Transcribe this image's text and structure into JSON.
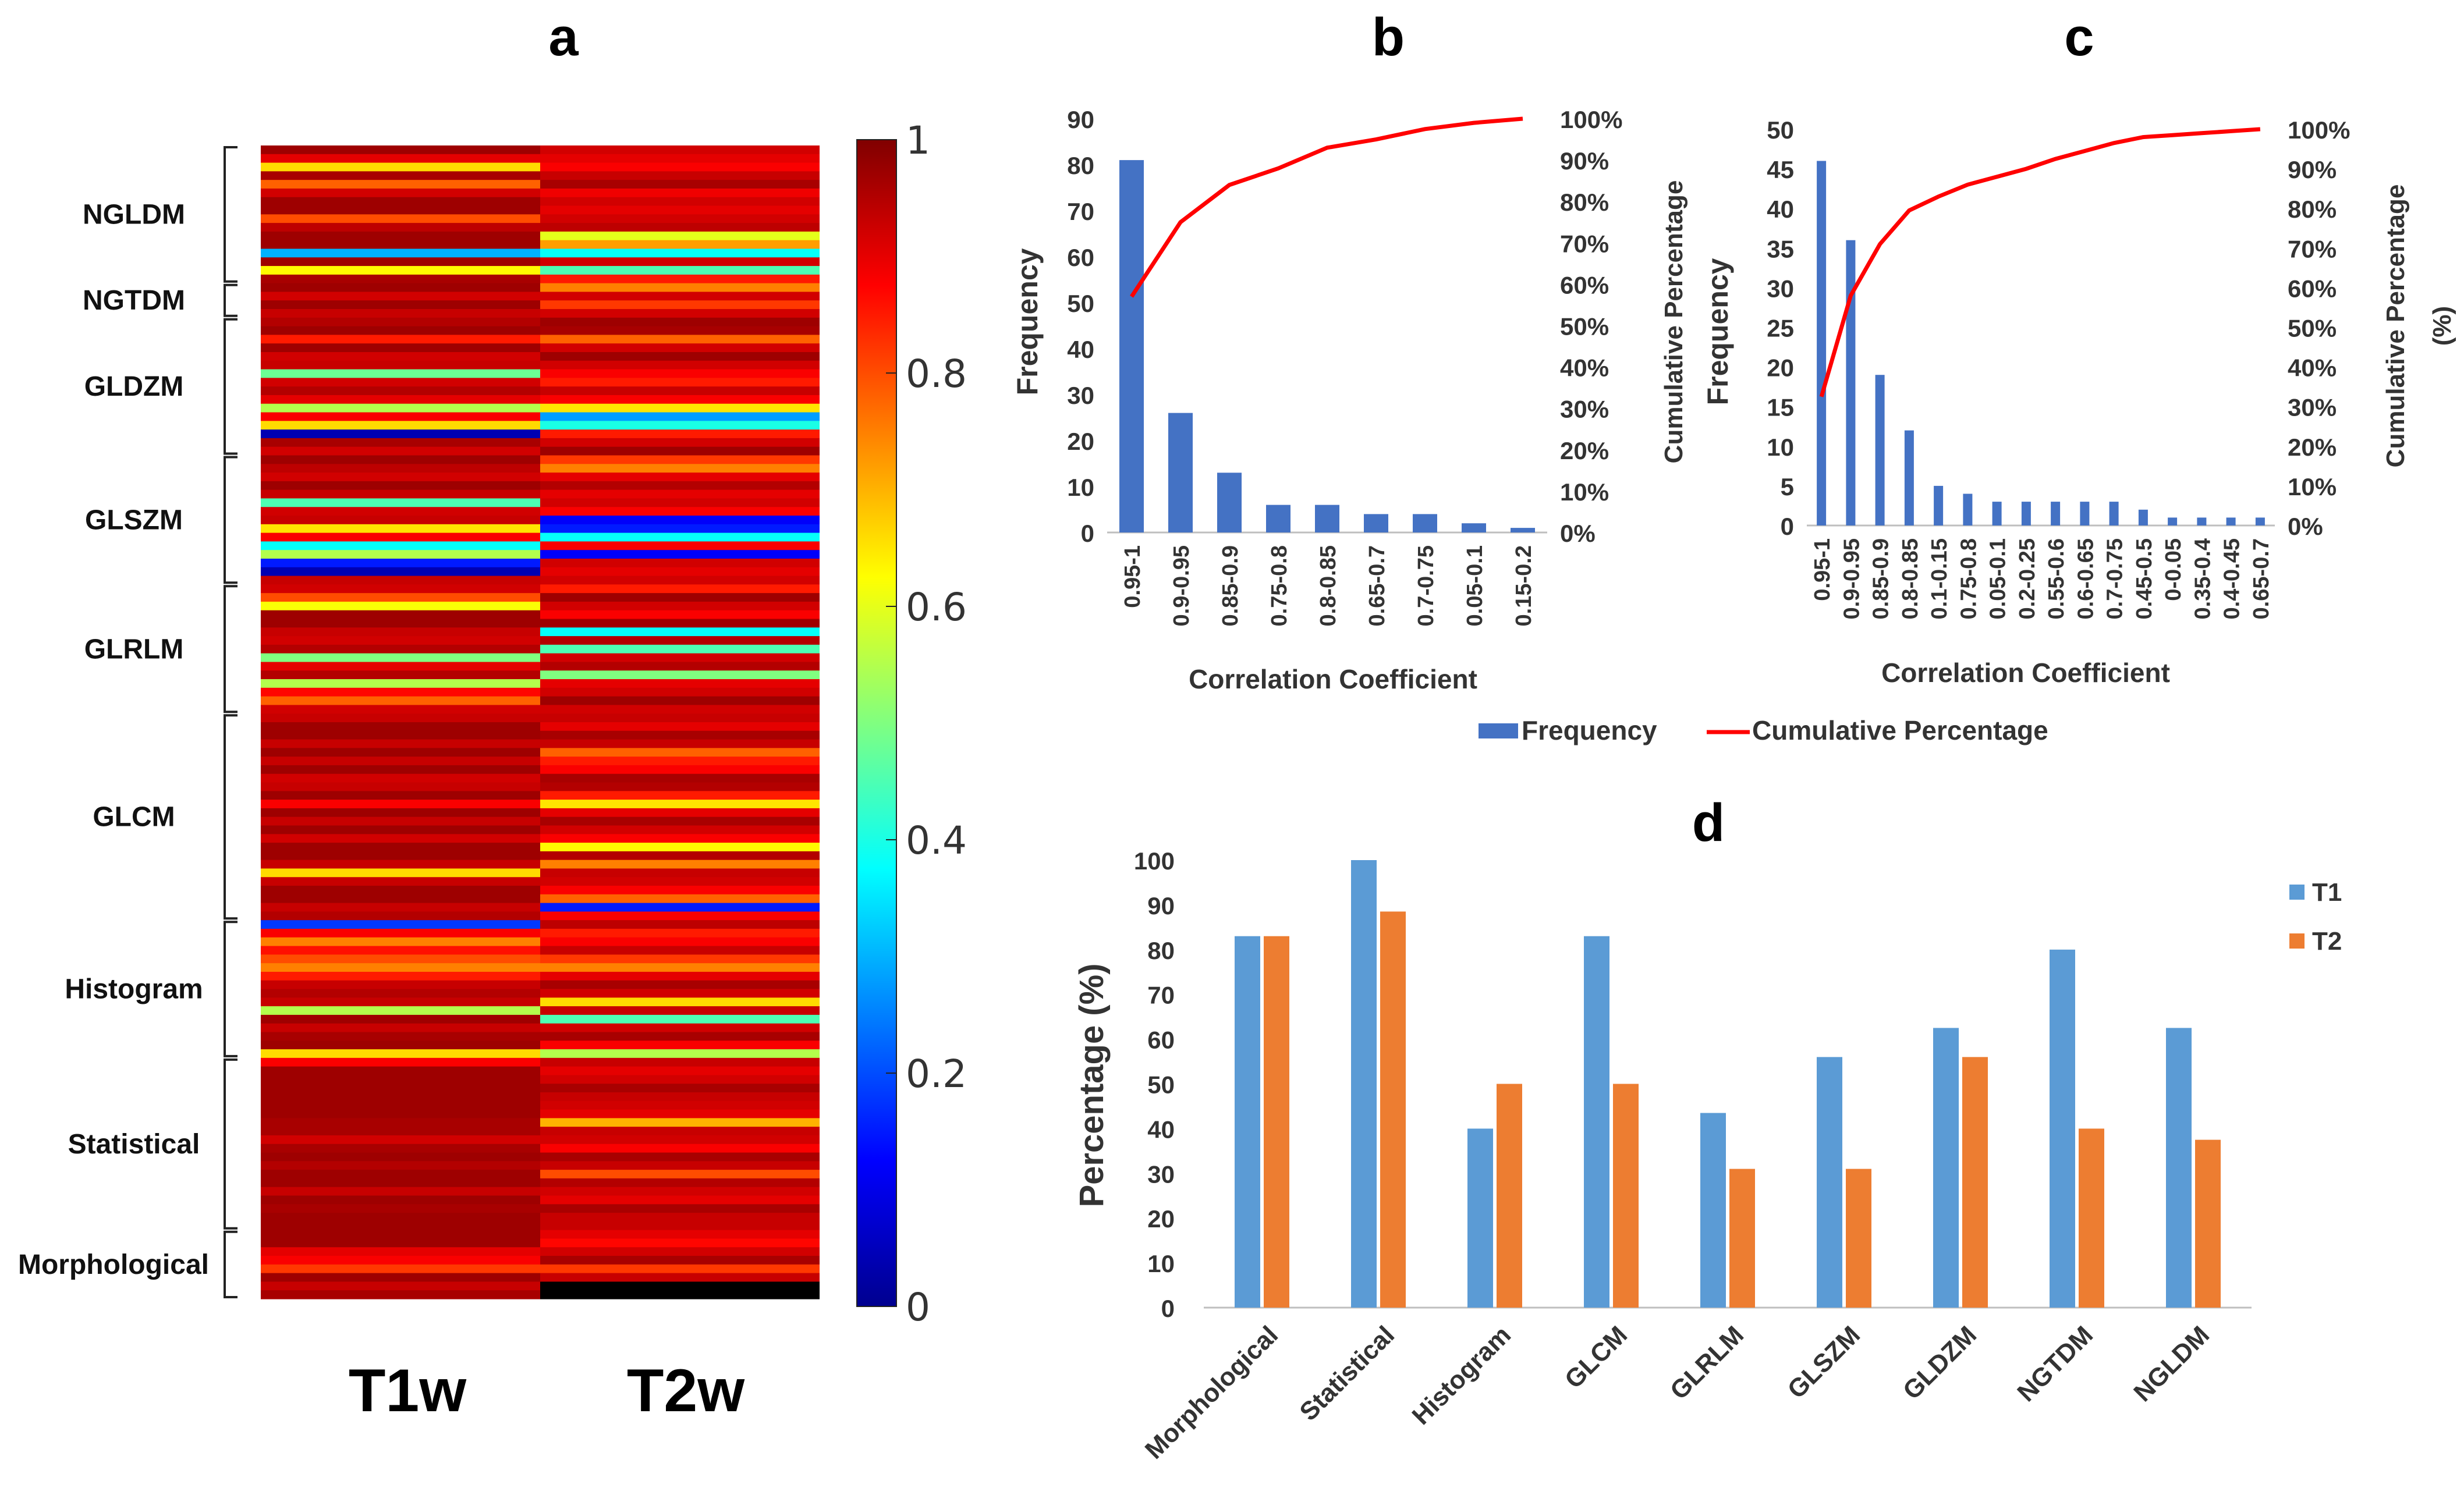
{
  "chart_data": [
    {
      "panel": "a",
      "type": "heatmap",
      "title": "a",
      "columns": [
        "T1w",
        "T2w"
      ],
      "groups": [
        "NGLDM",
        "NGTDM",
        "GLDZM",
        "GLSZM",
        "GLRLM",
        "GLCM",
        "Histogram",
        "Statistical",
        "Morphological"
      ],
      "group_row_counts": [
        16,
        4,
        16,
        15,
        15,
        24,
        16,
        20,
        8
      ],
      "colorbar": {
        "min": 0,
        "max": 1,
        "ticks": [
          "0",
          "0.2",
          "0.4",
          "0.6",
          "0.8",
          "1"
        ],
        "colormap": "jet"
      },
      "values_T1w": [
        0.97,
        0.9,
        0.66,
        0.96,
        0.78,
        0.92,
        0.97,
        0.97,
        0.8,
        0.94,
        0.97,
        0.97,
        0.3,
        0.97,
        0.63,
        0.96,
        0.97,
        0.92,
        0.97,
        0.93,
        0.95,
        0.97,
        0.85,
        0.97,
        0.92,
        0.93,
        0.48,
        0.92,
        0.95,
        0.9,
        0.55,
        0.88,
        0.66,
        0.05,
        0.96,
        0.92,
        0.97,
        0.94,
        0.92,
        0.97,
        0.93,
        0.45,
        0.92,
        0.93,
        0.65,
        0.88,
        0.38,
        0.55,
        0.15,
        0.05,
        0.93,
        0.92,
        0.8,
        0.62,
        0.97,
        0.97,
        0.93,
        0.92,
        0.95,
        0.5,
        0.9,
        0.95,
        0.55,
        0.87,
        0.78,
        0.92,
        0.93,
        0.97,
        0.97,
        0.93,
        0.97,
        0.93,
        0.97,
        0.92,
        0.93,
        0.97,
        0.88,
        0.97,
        0.93,
        0.97,
        0.92,
        0.97,
        0.97,
        0.93,
        0.66,
        0.93,
        0.97,
        0.97,
        0.93,
        0.95,
        0.18,
        0.88,
        0.75,
        0.86,
        0.8,
        0.75,
        0.85,
        0.93,
        0.95,
        0.93,
        0.55,
        0.97,
        0.93,
        0.96,
        0.97,
        0.66,
        0.88,
        0.97,
        0.97,
        0.97,
        0.97,
        0.97,
        0.97,
        0.96,
        0.96,
        0.92,
        0.96,
        0.97,
        0.95,
        0.97,
        0.97,
        0.93,
        0.97,
        0.96,
        0.97,
        0.97,
        0.97,
        0.97,
        0.9,
        0.88,
        0.82,
        0.97,
        0.93,
        0.96
      ],
      "values_T2w": [
        0.92,
        0.9,
        0.88,
        0.93,
        0.96,
        0.89,
        0.92,
        0.9,
        0.92,
        0.94,
        0.6,
        0.72,
        0.38,
        0.92,
        0.45,
        0.85,
        0.75,
        0.92,
        0.82,
        0.92,
        0.97,
        0.96,
        0.78,
        0.92,
        0.97,
        0.92,
        0.88,
        0.85,
        0.93,
        0.88,
        0.65,
        0.28,
        0.4,
        0.85,
        0.92,
        0.97,
        0.82,
        0.75,
        0.9,
        0.95,
        0.9,
        0.92,
        0.88,
        0.12,
        0.15,
        0.38,
        0.88,
        0.12,
        0.92,
        0.9,
        0.92,
        0.85,
        0.97,
        0.92,
        0.88,
        0.97,
        0.38,
        0.95,
        0.45,
        0.92,
        0.95,
        0.5,
        0.9,
        0.92,
        0.97,
        0.92,
        0.93,
        0.9,
        0.96,
        0.93,
        0.78,
        0.85,
        0.88,
        0.96,
        0.95,
        0.85,
        0.65,
        0.9,
        0.96,
        0.92,
        0.88,
        0.63,
        0.95,
        0.75,
        0.93,
        0.92,
        0.88,
        0.78,
        0.15,
        0.88,
        0.94,
        0.85,
        0.88,
        0.93,
        0.82,
        0.75,
        0.9,
        0.96,
        0.92,
        0.66,
        0.93,
        0.45,
        0.92,
        0.96,
        0.88,
        0.55,
        0.93,
        0.9,
        0.92,
        0.96,
        0.93,
        0.92,
        0.9,
        0.7,
        0.93,
        0.92,
        0.88,
        0.96,
        0.93,
        0.8,
        0.95,
        0.92,
        0.9,
        0.96,
        0.93,
        0.93,
        0.9,
        0.87,
        0.92,
        0.96,
        0.82,
        0.93
      ]
    },
    {
      "panel": "b",
      "type": "bar",
      "title": "b",
      "categories": [
        "0.95-1",
        "0.9-0.95",
        "0.85-0.9",
        "0.75-0.8",
        "0.8-0.85",
        "0.65-0.7",
        "0.7-0.75",
        "0.05-0.1",
        "0.15-0.2"
      ],
      "series": [
        {
          "name": "Frequency",
          "values": [
            81,
            26,
            13,
            6,
            6,
            4,
            4,
            2,
            1
          ]
        },
        {
          "name": "Cumulative Percentage",
          "values": [
            57,
            75,
            84,
            88,
            93,
            95,
            97.5,
            99,
            100
          ]
        }
      ],
      "xlabel": "Correlation  Coefficient",
      "ylabel": "Frequency",
      "y2label": "Cumulative Percentage",
      "ylim": [
        0,
        90
      ],
      "yticks": [
        "0",
        "10",
        "20",
        "30",
        "40",
        "50",
        "60",
        "70",
        "80",
        "90"
      ],
      "y2ticks": [
        "0%",
        "10%",
        "20%",
        "30%",
        "40%",
        "50%",
        "60%",
        "70%",
        "80%",
        "90%",
        "100%"
      ]
    },
    {
      "panel": "c",
      "type": "bar",
      "title": "c",
      "categories": [
        "0.95-1",
        "0.9-0.95",
        "0.85-0.9",
        "0.8-0.85",
        "0.1-0.15",
        "0.75-0.8",
        "0.05-0.1",
        "0.2-0.25",
        "0.55-0.6",
        "0.6-0.65",
        "0.7-0.75",
        "0.45-0.5",
        "0-0.05",
        "0.35-0.4",
        "0.4-0.45",
        "0.65-0.7"
      ],
      "series": [
        {
          "name": "Frequency",
          "values": [
            46,
            36,
            19,
            12,
            5,
            4,
            3,
            3,
            3,
            3,
            3,
            2,
            1,
            1,
            1,
            1
          ]
        },
        {
          "name": "Cumulative Percentage",
          "values": [
            32.5,
            58,
            71,
            79.5,
            83,
            86,
            88,
            90,
            92.5,
            94.5,
            96.5,
            98,
            98.5,
            99,
            99.5,
            100
          ]
        }
      ],
      "xlabel": "Correlation  Coefficient",
      "ylabel": "Frequency",
      "y2label_line1": "Cumulative  Percentage",
      "y2label_line2": "(%)",
      "ylim": [
        0,
        50
      ],
      "yticks": [
        "0",
        "5",
        "10",
        "15",
        "20",
        "25",
        "30",
        "35",
        "40",
        "45",
        "50"
      ],
      "y2ticks": [
        "0%",
        "10%",
        "20%",
        "30%",
        "40%",
        "50%",
        "60%",
        "70%",
        "80%",
        "90%",
        "100%"
      ]
    },
    {
      "panel": "d",
      "type": "bar",
      "title": "d",
      "categories": [
        "Morphological",
        "Statistical",
        "Histogram",
        "GLCM",
        "GLRLM",
        "GLSZM",
        "GLDZM",
        "NGTDM",
        "NGLDM"
      ],
      "series": [
        {
          "name": "T1",
          "values": [
            83,
            100,
            40,
            83,
            43.5,
            56,
            62.5,
            80,
            62.5
          ]
        },
        {
          "name": "T2",
          "values": [
            83,
            88.5,
            50,
            50,
            31,
            31,
            56,
            40,
            37.5
          ]
        }
      ],
      "ylabel": "Percentage (%)",
      "ylim": [
        0,
        100
      ],
      "yticks": [
        "0",
        "10",
        "20",
        "30",
        "40",
        "50",
        "60",
        "70",
        "80",
        "90",
        "100"
      ]
    }
  ],
  "legend_bc": {
    "frequency": "Frequency",
    "cumulative": "Cumulative Percentage"
  },
  "colors": {
    "bar_blue": "#4472c4",
    "line_red": "#ff0000",
    "t1_blue": "#5b9bd5",
    "t2_orange": "#ed7d31",
    "axis": "#bfbfbf",
    "text": "#333333"
  }
}
